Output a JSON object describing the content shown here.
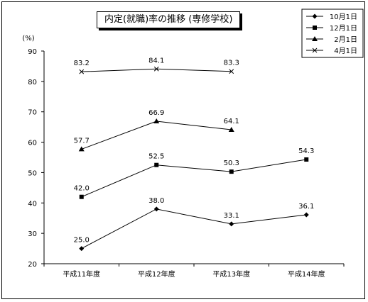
{
  "chart_data": {
    "type": "line",
    "title": "内定(就職)率の推移 (専修学校)",
    "ylabel": "(%)",
    "xlabel": "",
    "ylim": [
      20,
      90
    ],
    "yticks": [
      20,
      30,
      40,
      50,
      60,
      70,
      80,
      90
    ],
    "grid": false,
    "legend_position": "top-right",
    "categories": [
      "平成11年度",
      "平成12年度",
      "平成13年度",
      "平成14年度"
    ],
    "series": [
      {
        "name": "10月1日",
        "marker": "diamond",
        "values": [
          25.0,
          38.0,
          33.1,
          36.1
        ],
        "labels": [
          "25.0",
          "38.0",
          "33.1",
          "36.1"
        ]
      },
      {
        "name": "12月1日",
        "marker": "square",
        "values": [
          42.0,
          52.5,
          50.3,
          54.3
        ],
        "labels": [
          "42.0",
          "52.5",
          "50.3",
          "54.3"
        ]
      },
      {
        "name": "2月1日",
        "marker": "triangle",
        "values": [
          57.7,
          66.9,
          64.1,
          null
        ],
        "labels": [
          "57.7",
          "66.9",
          "64.1",
          ""
        ]
      },
      {
        "name": "4月1日",
        "marker": "x",
        "values": [
          83.2,
          84.1,
          83.3,
          null
        ],
        "labels": [
          "83.2",
          "84.1",
          "83.3",
          ""
        ]
      }
    ]
  }
}
